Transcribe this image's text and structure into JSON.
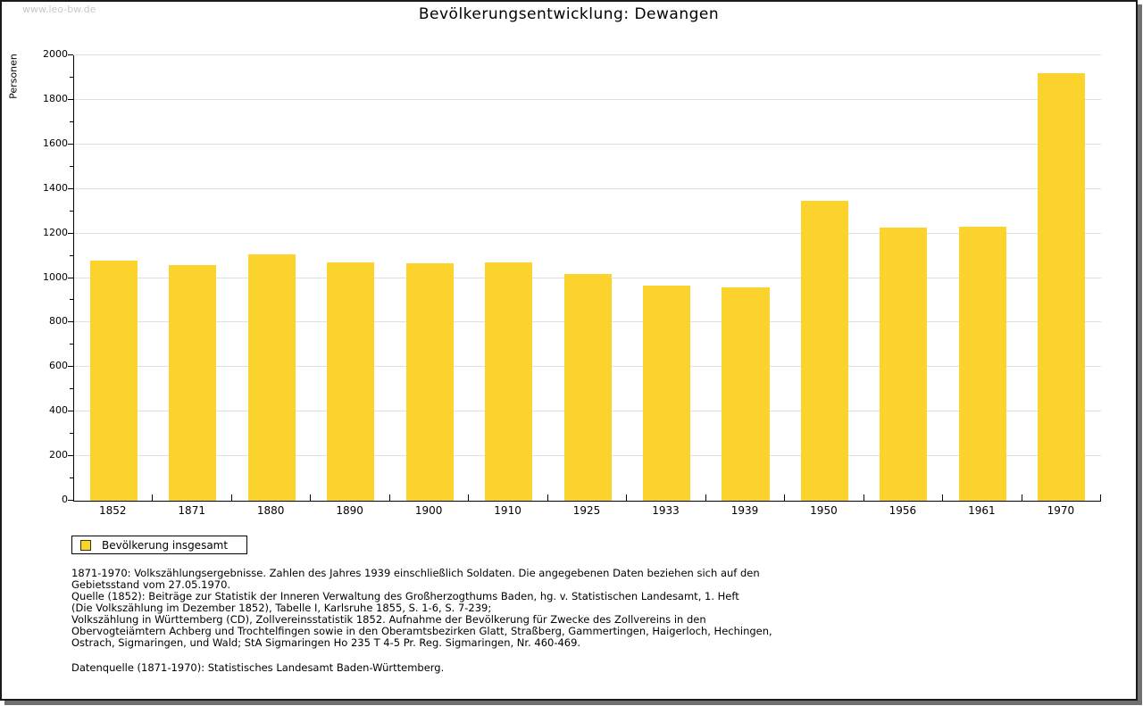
{
  "watermark": "www.leo-bw.de",
  "chart_data": {
    "type": "bar",
    "title": "Bevölkerungsentwicklung: Dewangen",
    "xlabel": "",
    "ylabel": "Personen",
    "ylim": [
      0,
      2000
    ],
    "ytick_step": 200,
    "yminor_step": 100,
    "grid": true,
    "legend_position": "bottom-left",
    "categories": [
      "1852",
      "1871",
      "1880",
      "1890",
      "1900",
      "1910",
      "1925",
      "1933",
      "1939",
      "1950",
      "1956",
      "1961",
      "1970"
    ],
    "series": [
      {
        "name": "Bevölkerung insgesamt",
        "values": [
          1080,
          1060,
          1107,
          1072,
          1066,
          1071,
          1020,
          967,
          958,
          1346,
          1225,
          1230,
          1920
        ]
      }
    ]
  },
  "legend": {
    "label": "Bevölkerung insgesamt",
    "swatch_color": "#fcd32c",
    "swatch_border": "#3d3300"
  },
  "colors": {
    "bar": "#fcd32c",
    "gridline": "#e0e0e0",
    "axis": "#000000",
    "watermark": "#c8c8c8",
    "frame_shadow": "#707070"
  },
  "footnotes": {
    "lines": [
      "1871-1970: Volkszählungsergebnisse. Zahlen des Jahres 1939 einschließlich Soldaten. Die angegebenen Daten beziehen sich auf den",
      "Gebietsstand vom 27.05.1970.",
      "Quelle (1852): Beiträge zur Statistik der Inneren Verwaltung des Großherzogthums Baden, hg. v. Statistischen Landesamt, 1. Heft",
      "(Die Volkszählung im Dezember 1852), Tabelle I, Karlsruhe 1855, S. 1-6, S. 7-239;",
      "Volkszählung in Württemberg (CD), Zollvereinsstatistik 1852. Aufnahme der Bevölkerung für Zwecke des Zollvereins in den",
      "Obervogteiämtern Achberg und Trochtelfingen sowie in den Oberamtsbezirken Glatt, Straßberg, Gammertingen, Haigerloch, Hechingen,",
      "Ostrach, Sigmaringen, und Wald; StA Sigmaringen Ho 235 T 4-5 Pr. Reg. Sigmaringen, Nr. 460-469."
    ],
    "datasource": "Datenquelle (1871-1970): Statistisches Landesamt Baden-Württemberg."
  }
}
